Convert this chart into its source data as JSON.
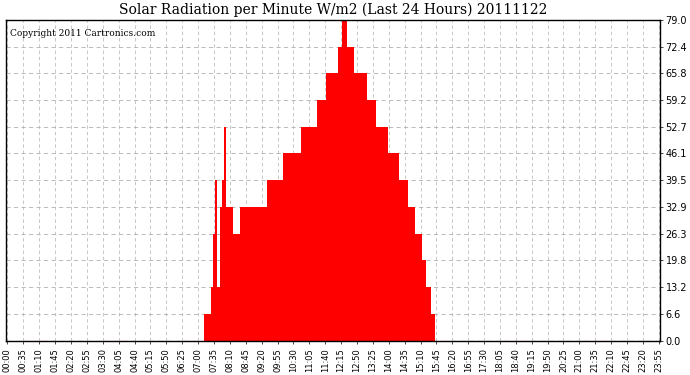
{
  "title": "Solar Radiation per Minute W/m2 (Last 24 Hours) 20111122",
  "copyright": "Copyright 2011 Cartronics.com",
  "bar_color": "#ff0000",
  "background_color": "#ffffff",
  "plot_bg_color": "#ffffff",
  "grid_color": "#b0b0b0",
  "ylim": [
    0,
    79.0
  ],
  "yticks": [
    0.0,
    6.6,
    13.2,
    19.8,
    26.3,
    32.9,
    39.5,
    46.1,
    52.7,
    59.2,
    65.8,
    72.4,
    79.0
  ],
  "xtick_labels": [
    "00:00",
    "00:35",
    "01:10",
    "01:45",
    "02:20",
    "02:55",
    "03:30",
    "04:05",
    "04:40",
    "05:15",
    "05:50",
    "06:25",
    "07:00",
    "07:35",
    "08:10",
    "08:45",
    "09:20",
    "09:55",
    "10:30",
    "11:05",
    "11:40",
    "12:15",
    "12:50",
    "13:25",
    "14:00",
    "14:35",
    "15:10",
    "15:45",
    "16:20",
    "16:55",
    "17:30",
    "18:05",
    "18:40",
    "19:15",
    "19:50",
    "20:25",
    "21:00",
    "21:35",
    "22:10",
    "22:45",
    "23:20",
    "23:55"
  ],
  "data": [
    0,
    0,
    0,
    0,
    0,
    0,
    0,
    0,
    0,
    0,
    0,
    0,
    0,
    0,
    0,
    0,
    0,
    0,
    0,
    0,
    0,
    0,
    0,
    0,
    0,
    0,
    0,
    0,
    0,
    0,
    0,
    0,
    0,
    0,
    0,
    0,
    0,
    0,
    0,
    0,
    0,
    0,
    0,
    0,
    0,
    0,
    0,
    0,
    0,
    0,
    0,
    0,
    0,
    0,
    0,
    0,
    0,
    0,
    0,
    0,
    0,
    0,
    0,
    0,
    0,
    0,
    0,
    0,
    0,
    0,
    0,
    0,
    0,
    0,
    0,
    0,
    0,
    0,
    0,
    0,
    0,
    0,
    0,
    0,
    0,
    0,
    0,
    6.6,
    6.6,
    6.6,
    13.2,
    26.3,
    39.5,
    13.2,
    32.9,
    39.5,
    52.7,
    32.9,
    32.9,
    32.9,
    26.3,
    26.3,
    26.3,
    32.9,
    32.9,
    32.9,
    32.9,
    32.9,
    32.9,
    32.9,
    32.9,
    32.9,
    32.9,
    32.9,
    32.9,
    39.5,
    39.5,
    39.5,
    39.5,
    39.5,
    39.5,
    39.5,
    46.1,
    46.1,
    46.1,
    46.1,
    46.1,
    46.1,
    46.1,
    46.1,
    52.7,
    52.7,
    52.7,
    52.7,
    52.7,
    52.7,
    52.7,
    59.2,
    59.2,
    59.2,
    59.2,
    65.8,
    65.8,
    65.8,
    65.8,
    65.8,
    72.4,
    72.4,
    79.0,
    79.0,
    72.4,
    72.4,
    72.4,
    65.8,
    65.8,
    65.8,
    65.8,
    65.8,
    65.8,
    59.2,
    59.2,
    59.2,
    59.2,
    52.7,
    52.7,
    52.7,
    52.7,
    52.7,
    46.1,
    46.1,
    46.1,
    46.1,
    46.1,
    39.5,
    39.5,
    39.5,
    39.5,
    32.9,
    32.9,
    32.9,
    26.3,
    26.3,
    26.3,
    19.8,
    19.8,
    13.2,
    13.2,
    6.6,
    6.6,
    0,
    0,
    0,
    0,
    0,
    0,
    0,
    0,
    0,
    0,
    0,
    0,
    0,
    0,
    0,
    0,
    0,
    0,
    0,
    0,
    0,
    0,
    0,
    0,
    0,
    0,
    0,
    0,
    0,
    0,
    0,
    0,
    0,
    0,
    0,
    0,
    0,
    0,
    0,
    0,
    0,
    0,
    0,
    0,
    0,
    0,
    0,
    0,
    0,
    0,
    0,
    0,
    0,
    0,
    0,
    0,
    0,
    0,
    0,
    0,
    0,
    0,
    0,
    0,
    0,
    0,
    0,
    0,
    0,
    0,
    0,
    0,
    0,
    0,
    0,
    0,
    0,
    0,
    0,
    0,
    0,
    0,
    0,
    0,
    0,
    0,
    0,
    0,
    0,
    0
  ]
}
